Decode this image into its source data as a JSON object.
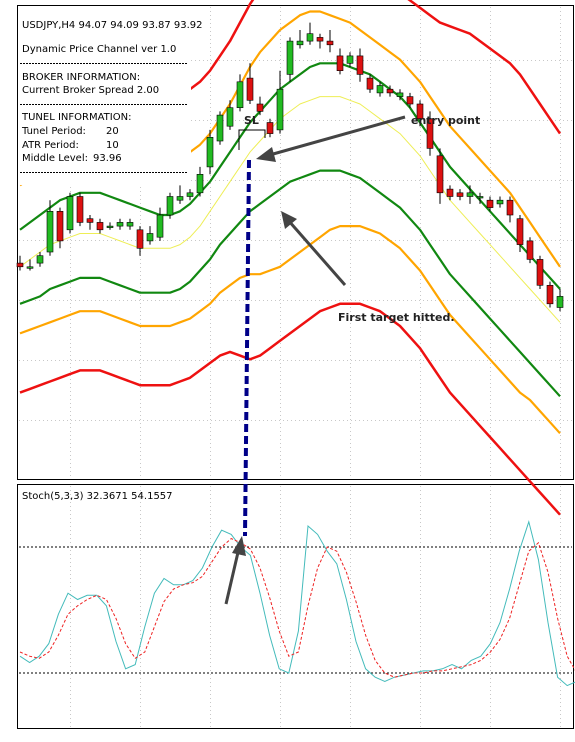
{
  "header": {
    "symbol_line": "USDJPY,H4  94.07 94.09 93.87 93.92",
    "indicator_name": "Dynamic Price Channel ver 1.0",
    "broker_heading": "BROKER INFORMATION:",
    "broker_spread": "Current Broker Spread 2.00",
    "tunnel_heading": "TUNEL INFORMATION:",
    "tunnel_period_label": "Tunel Period:",
    "tunnel_period_value": "20",
    "atr_period_label": "ATR Period:",
    "atr_period_value": "10",
    "middle_level_label": "Middle Level:",
    "middle_level_value": "93.96"
  },
  "annotations": {
    "sl": "SL",
    "entry": "entry point",
    "target": "First target hitted."
  },
  "stoch": {
    "label": "Stoch(5,3,3) 32.3671 54.1557"
  },
  "colors": {
    "bull": "#22bb22",
    "bear": "#dd1111",
    "outer_band": "#ee1111",
    "mid_band": "#ffa500",
    "inner_band": "#118811",
    "middle_line": "#eeee55",
    "stoch_main": "#44bbbb",
    "stoch_signal": "#ee2222",
    "arrow": "#444444",
    "dashed_link": "#000088"
  },
  "chart_data": [
    {
      "type": "candlestick",
      "title": "USDJPY,H4",
      "ylim": [
        0,
        100
      ],
      "candles": [
        [
          37,
          36,
          39,
          35
        ],
        [
          36,
          36,
          38,
          35
        ],
        [
          37,
          39,
          40,
          36
        ],
        [
          40,
          51,
          54,
          39
        ],
        [
          51,
          43,
          52,
          41
        ],
        [
          46,
          55,
          56,
          45
        ],
        [
          55,
          48,
          56,
          47
        ],
        [
          49,
          48,
          50,
          46
        ],
        [
          48,
          46,
          49,
          45
        ],
        [
          47,
          47,
          48,
          46
        ],
        [
          47,
          48,
          49,
          46
        ],
        [
          47,
          48,
          49,
          46
        ],
        [
          46,
          41,
          47,
          39
        ],
        [
          43,
          45,
          47,
          42
        ],
        [
          44,
          50,
          52,
          43
        ],
        [
          50,
          55,
          56,
          49
        ],
        [
          54,
          55,
          58,
          53
        ],
        [
          55,
          56,
          57,
          54
        ],
        [
          56,
          61,
          63,
          55
        ],
        [
          63,
          71,
          73,
          61
        ],
        [
          70,
          77,
          78,
          69
        ],
        [
          74,
          79,
          81,
          73
        ],
        [
          79,
          86,
          88,
          78
        ],
        [
          87,
          81,
          91,
          80
        ],
        [
          80,
          78,
          82,
          77
        ],
        [
          75,
          72,
          76,
          71
        ],
        [
          73,
          84,
          89,
          72
        ],
        [
          88,
          97,
          98,
          86
        ],
        [
          96,
          97,
          100,
          95
        ],
        [
          97,
          99,
          102,
          96
        ],
        [
          98,
          97,
          99,
          95
        ],
        [
          97,
          96,
          100,
          94
        ],
        [
          93,
          89,
          95,
          88
        ],
        [
          91,
          93,
          94,
          90
        ],
        [
          93,
          88,
          95,
          86
        ],
        [
          87,
          84,
          88,
          83
        ],
        [
          83,
          85,
          86,
          82
        ],
        [
          84,
          83,
          85,
          82
        ],
        [
          82,
          83,
          84,
          81
        ],
        [
          82,
          80,
          83,
          79
        ],
        [
          80,
          76,
          81,
          74
        ],
        [
          76,
          68,
          78,
          66
        ],
        [
          66,
          56,
          68,
          53
        ],
        [
          57,
          55,
          58,
          54
        ],
        [
          56,
          55,
          57,
          54
        ],
        [
          55,
          56,
          58,
          53
        ],
        [
          55,
          55,
          56,
          53
        ],
        [
          54,
          52,
          55,
          51
        ],
        [
          53,
          54,
          55,
          52
        ],
        [
          54,
          50,
          55,
          48
        ],
        [
          49,
          42,
          50,
          40
        ],
        [
          43,
          38,
          44,
          37
        ],
        [
          38,
          31,
          39,
          30
        ],
        [
          31,
          26,
          32,
          25
        ],
        [
          25,
          28,
          30,
          24
        ]
      ],
      "bands": {
        "upper_outer": [
          74,
          76,
          79,
          82,
          84,
          86,
          88,
          89,
          89,
          88,
          87,
          86,
          84,
          83,
          82,
          81,
          82,
          84,
          86,
          89,
          93,
          97,
          102,
          107,
          111,
          114,
          117,
          119,
          121,
          122,
          122,
          121,
          120,
          119,
          117,
          116,
          114,
          112,
          110,
          108,
          106,
          104,
          102,
          101,
          100,
          99,
          97,
          95,
          93,
          91,
          88,
          84,
          80,
          76,
          72
        ],
        "upper_mid": [
          58,
          60,
          62,
          64,
          66,
          68,
          70,
          71,
          71,
          70,
          69,
          68,
          67,
          66,
          65,
          64,
          65,
          67,
          69,
          72,
          76,
          80,
          85,
          90,
          94,
          97,
          100,
          102,
          104,
          105,
          105,
          104,
          103,
          102,
          100,
          98,
          96,
          94,
          92,
          89,
          86,
          82,
          78,
          74,
          71,
          68,
          65,
          62,
          59,
          56,
          52,
          48,
          44,
          40,
          36
        ],
        "inner_upper": [
          46,
          48,
          50,
          52,
          54,
          55,
          56,
          56,
          56,
          55,
          54,
          53,
          52,
          51,
          50,
          50,
          51,
          53,
          56,
          59,
          63,
          67,
          71,
          75,
          78,
          81,
          84,
          86,
          88,
          90,
          91,
          91,
          91,
          90,
          89,
          88,
          86,
          84,
          82,
          79,
          75,
          71,
          67,
          63,
          60,
          57,
          54,
          51,
          48,
          45,
          42,
          39,
          36,
          33,
          30
        ],
        "middle": [
          36,
          38,
          40,
          42,
          43,
          44,
          45,
          45,
          45,
          44,
          43,
          42,
          41,
          41,
          41,
          41,
          42,
          44,
          47,
          51,
          55,
          59,
          63,
          67,
          70,
          73,
          76,
          78,
          80,
          81,
          82,
          82,
          82,
          81,
          80,
          78,
          76,
          74,
          72,
          69,
          66,
          62,
          58,
          54,
          51,
          48,
          45,
          42,
          39,
          36,
          33,
          30,
          27,
          24,
          21
        ],
        "inner_lower": [
          26,
          27,
          28,
          30,
          31,
          32,
          33,
          33,
          33,
          32,
          31,
          30,
          29,
          29,
          29,
          29,
          30,
          32,
          35,
          38,
          42,
          45,
          48,
          51,
          53,
          55,
          57,
          59,
          60,
          61,
          62,
          62,
          62,
          61,
          60,
          58,
          56,
          54,
          52,
          49,
          46,
          42,
          38,
          34,
          31,
          28,
          25,
          22,
          19,
          16,
          13,
          10,
          7,
          4,
          1
        ],
        "lower_mid": [
          18,
          19,
          20,
          21,
          22,
          23,
          24,
          24,
          24,
          23,
          22,
          21,
          20,
          20,
          20,
          20,
          21,
          22,
          24,
          26,
          29,
          31,
          33,
          34,
          34,
          35,
          36,
          38,
          40,
          42,
          44,
          46,
          47,
          47,
          47,
          46,
          45,
          43,
          41,
          38,
          35,
          31,
          27,
          23,
          20,
          17,
          14,
          11,
          8,
          5,
          2,
          0,
          -3,
          -6,
          -9
        ],
        "lower_outer": [
          2,
          3,
          4,
          5,
          6,
          7,
          8,
          8,
          8,
          7,
          6,
          5,
          4,
          4,
          4,
          4,
          5,
          6,
          8,
          10,
          12,
          13,
          12,
          11,
          12,
          14,
          16,
          18,
          20,
          22,
          24,
          25,
          26,
          26,
          26,
          25,
          24,
          22,
          20,
          17,
          14,
          10,
          6,
          2,
          -1,
          -4,
          -7,
          -10,
          -13,
          -16,
          -19,
          -22,
          -25,
          -28,
          -31
        ]
      }
    },
    {
      "type": "line",
      "title": "Stoch(5,3,3) 32.3671 54.1557",
      "ylim": [
        0,
        100
      ],
      "levels": [
        80,
        20
      ],
      "series": [
        {
          "values": [
            28,
            25,
            28,
            34,
            48,
            58,
            55,
            57,
            57,
            52,
            35,
            22,
            24,
            42,
            58,
            65,
            62,
            62,
            64,
            70,
            80,
            88,
            86,
            80,
            76,
            58,
            38,
            22,
            20,
            40,
            90,
            86,
            78,
            72,
            55,
            35,
            22,
            18,
            16,
            18,
            19,
            20,
            21,
            21,
            22,
            24,
            22,
            26,
            28,
            34,
            44,
            60,
            78,
            92,
            74,
            44,
            18,
            14,
            16
          ]
        },
        {
          "values": [
            30,
            28,
            27,
            30,
            38,
            48,
            52,
            55,
            57,
            55,
            46,
            34,
            27,
            30,
            42,
            54,
            60,
            62,
            63,
            66,
            73,
            80,
            84,
            82,
            79,
            70,
            56,
            40,
            28,
            30,
            52,
            70,
            80,
            78,
            68,
            54,
            38,
            26,
            20,
            18,
            19,
            20,
            20,
            21,
            21,
            22,
            23,
            24,
            26,
            30,
            36,
            46,
            62,
            78,
            82,
            68,
            46,
            28,
            20
          ]
        }
      ]
    }
  ]
}
